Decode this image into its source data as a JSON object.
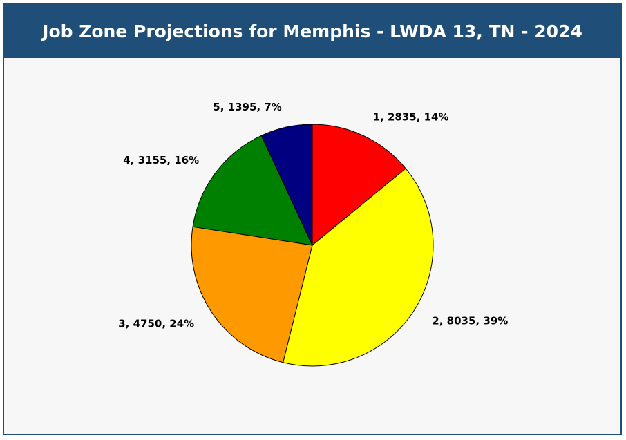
{
  "chart_data": {
    "type": "pie",
    "title": "Job Zone Projections for Memphis - LWDA 13, TN - 2024",
    "slices": [
      {
        "category": "1",
        "value": 2835,
        "percent": 14,
        "label": "1, 2835, 14%",
        "color": "#ff0000"
      },
      {
        "category": "2",
        "value": 8035,
        "percent": 39,
        "label": "2, 8035, 39%",
        "color": "#ffff00"
      },
      {
        "category": "3",
        "value": 4750,
        "percent": 24,
        "label": "3, 4750, 24%",
        "color": "#ff9900"
      },
      {
        "category": "4",
        "value": 3155,
        "percent": 16,
        "label": "4, 3155, 16%",
        "color": "#008000"
      },
      {
        "category": "5",
        "value": 1395,
        "percent": 7,
        "label": "5, 1395, 7%",
        "color": "#000080"
      }
    ],
    "start_angle": "12 o'clock",
    "direction": "clockwise",
    "legend": "none"
  },
  "colors": {
    "header_background": "#1f4e79",
    "header_text": "#ffffff",
    "plot_background": "#f7f7f7"
  }
}
